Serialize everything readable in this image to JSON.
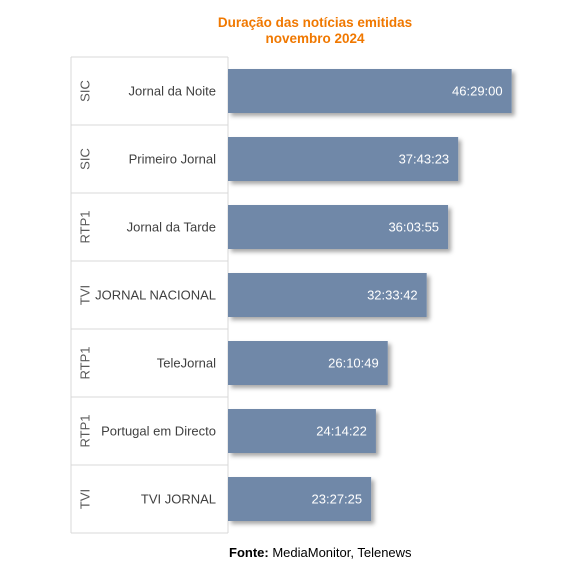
{
  "chart_data": {
    "type": "bar",
    "orientation": "horizontal",
    "title": "Duração das notícias emitidas",
    "subtitle": "novembro 2024",
    "groups": [
      "SIC",
      "SIC",
      "RTP1",
      "TVI",
      "RTP1",
      "RTP1",
      "TVI"
    ],
    "categories": [
      "Jornal da Noite",
      "Primeiro Jornal",
      "Jornal da Tarde",
      "JORNAL NACIONAL",
      "TeleJornal",
      "Portugal em Directo",
      "TVI JORNAL"
    ],
    "value_labels": [
      "46:29:00",
      "37:43:23",
      "36:03:55",
      "32:33:42",
      "26:10:49",
      "24:14:22",
      "23:27:25"
    ],
    "values_hours": [
      46.483,
      37.723,
      36.065,
      32.562,
      26.18,
      24.239,
      23.457
    ],
    "xlim_hours": [
      0,
      47.2
    ],
    "bar_color": "#7088a8",
    "title_color": "#f07800",
    "grid": false,
    "legend": "none"
  },
  "source": {
    "label": "Fonte:",
    "text": " MediaMonitor, Telenews"
  }
}
